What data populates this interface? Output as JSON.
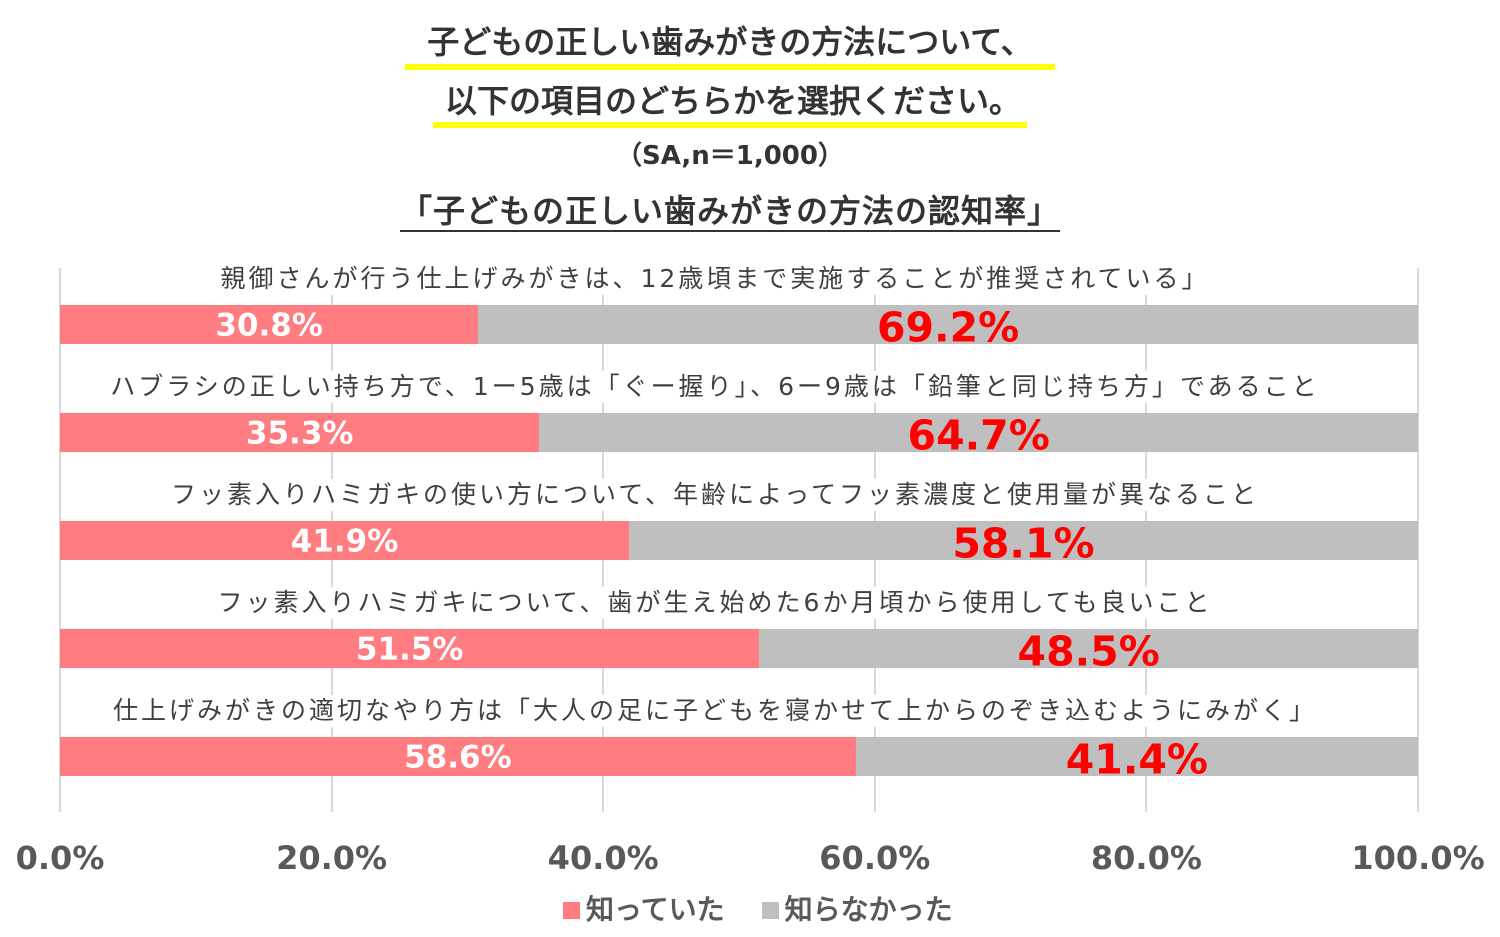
{
  "header": {
    "question_line1": "子どもの正しい歯みがきの方法について、",
    "question_line2": "以下の項目のどちらかを選択ください。",
    "sample_note": "（SA,n＝1,000）",
    "highlight_color": "#FFFF00"
  },
  "chart_data": {
    "type": "bar",
    "orientation": "horizontal",
    "stacking": "percent",
    "title": "「子どもの正しい歯みがきの方法の認知率」",
    "categories": [
      "親御さんが行う仕上げみがきは、12歳頃まで実施することが推奨されている」",
      "ハブラシの正しい持ち方で、1ー5歳は「ぐー握り」、6ー9歳は「鉛筆と同じ持ち方」であること",
      "フッ素入りハミガキの使い方について、年齢によってフッ素濃度と使用量が異なること",
      "フッ素入りハミガキについて、歯が生え始めた6か月頃から使用しても良いこと",
      "仕上げみがきの適切なやり方は「大人の足に子どもを寝かせて上からのぞき込むようにみがく」"
    ],
    "series": [
      {
        "name": "知っていた",
        "color": "#FF7C80",
        "label_color": "#FFFFFF",
        "values": [
          30.8,
          35.3,
          41.9,
          51.5,
          58.6
        ],
        "data_labels": [
          "30.8%",
          "35.3%",
          "41.9%",
          "51.5%",
          "58.6%"
        ]
      },
      {
        "name": "知らなかった",
        "color": "#BFBFBF",
        "label_color": "#FF0000",
        "values": [
          69.2,
          64.7,
          58.1,
          48.5,
          41.4
        ],
        "data_labels": [
          "69.2%",
          "64.7%",
          "58.1%",
          "48.5%",
          "41.4%"
        ]
      }
    ],
    "xlim": [
      0,
      100
    ],
    "x_ticks": [
      0,
      20,
      40,
      60,
      80,
      100
    ],
    "x_tick_labels": [
      "0.0%",
      "20.0%",
      "40.0%",
      "60.0%",
      "80.0%",
      "100.0%"
    ],
    "grid": true,
    "legend": "bottom"
  }
}
